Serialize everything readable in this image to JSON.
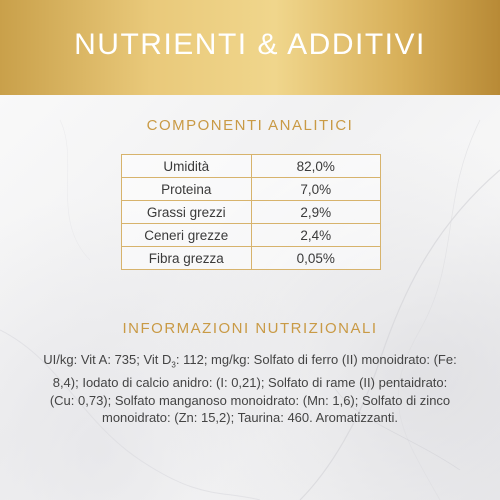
{
  "header": {
    "title": "NUTRIENTI & ADDITIVI"
  },
  "analytic": {
    "title": "COMPONENTI ANALITICI",
    "rows": [
      {
        "name": "Umidità",
        "value": "82,0%"
      },
      {
        "name": "Proteina",
        "value": "7,0%"
      },
      {
        "name": "Grassi grezzi",
        "value": "2,9%"
      },
      {
        "name": "Ceneri grezze",
        "value": "2,4%"
      },
      {
        "name": "Fibra grezza",
        "value": "0,05%"
      }
    ]
  },
  "nutrition": {
    "title": "INFORMAZIONI NUTRIZIONALI",
    "p1": "UI/kg: Vit A: 735; Vit D",
    "sub": "3",
    "p2": ": 112; mg/kg: Solfato di ferro (II) monoidrato: (Fe: 8,4); Iodato di calcio anidro: (I: 0,21); Solfato di rame (II) pentaidrato: (Cu: 0,73); Solfato manganoso monoidrato: (Mn: 1,6); Solfato di zinco monoidrato: (Zn: 15,2); Taurina: 460. Aromatizzanti."
  },
  "colors": {
    "gold": "#c99a45",
    "border": "#d7b36c",
    "banner_gold": "#e9c97a"
  }
}
